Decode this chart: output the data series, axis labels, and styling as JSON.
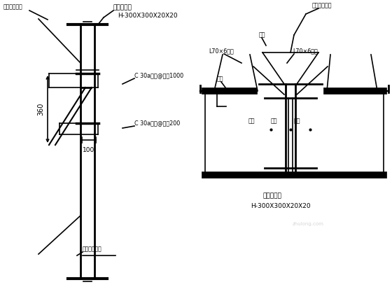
{
  "bg_color": "#ffffff",
  "line_color": "#000000",
  "thick_lw": 7,
  "thin_lw": 1.2,
  "med_lw": 2.0,
  "left": {
    "label_tl": "拉森钢板桩线",
    "label_bl": "拉森钢板桩线",
    "title_beam": "工字钢横梁",
    "spec_beam": "H-300X300X20X20",
    "spec_upper": "C 30a槽钢@间距1000",
    "spec_lower": "C 30a槽钢@间距200",
    "dim_360": "360",
    "dim_100": "100"
  },
  "right": {
    "title_top": "拉森钢板桩线",
    "label_l70_left": "L70×6角钢",
    "label_l70_right": "L70×6角钢",
    "label_djiao1": "点焊",
    "label_djiao2": "点焊",
    "label_djiao3": "点焊",
    "label_djiao4": "点焊",
    "label_djiao5": "点焊",
    "label_djiao6": "点焊",
    "title_bot": "工字钢横梁",
    "spec_bot": "H-300X300X20X20"
  }
}
